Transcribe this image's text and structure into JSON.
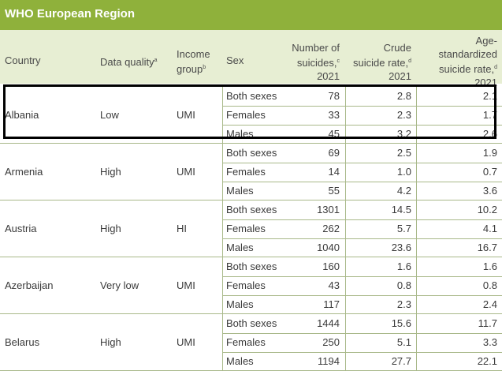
{
  "region_title": "WHO European Region",
  "headers": {
    "country": "Country",
    "quality": "Data quality",
    "quality_sup": "a",
    "income_1": "Income",
    "income_2": "group",
    "income_sup": "b",
    "sex": "Sex",
    "num_1": "Number of",
    "num_2": "suicides,",
    "num_sup": "c",
    "num_3": "2021",
    "crude_1": "Crude",
    "crude_2": "suicide rate,",
    "crude_sup": "d",
    "crude_3": "2021",
    "age_1": "Age-",
    "age_2": "standardized",
    "age_3": "suicide rate,",
    "age_sup": "d",
    "age_4": "2021"
  },
  "countries": [
    {
      "country": "Albania",
      "quality": "Low",
      "income": "UMI",
      "rows": [
        {
          "sex": "Both sexes",
          "number": "78",
          "crude": "2.8",
          "age": "2.1"
        },
        {
          "sex": "Females",
          "number": "33",
          "crude": "2.3",
          "age": "1.7"
        },
        {
          "sex": "Males",
          "number": "45",
          "crude": "3.2",
          "age": "2.6"
        }
      ]
    },
    {
      "country": "Armenia",
      "quality": "High",
      "income": "UMI",
      "rows": [
        {
          "sex": "Both sexes",
          "number": "69",
          "crude": "2.5",
          "age": "1.9"
        },
        {
          "sex": "Females",
          "number": "14",
          "crude": "1.0",
          "age": "0.7"
        },
        {
          "sex": "Males",
          "number": "55",
          "crude": "4.2",
          "age": "3.6"
        }
      ]
    },
    {
      "country": "Austria",
      "quality": "High",
      "income": "HI",
      "rows": [
        {
          "sex": "Both sexes",
          "number": "1301",
          "crude": "14.5",
          "age": "10.2"
        },
        {
          "sex": "Females",
          "number": "262",
          "crude": "5.7",
          "age": "4.1"
        },
        {
          "sex": "Males",
          "number": "1040",
          "crude": "23.6",
          "age": "16.7"
        }
      ]
    },
    {
      "country": "Azerbaijan",
      "quality": "Very low",
      "income": "UMI",
      "rows": [
        {
          "sex": "Both sexes",
          "number": "160",
          "crude": "1.6",
          "age": "1.6"
        },
        {
          "sex": "Females",
          "number": "43",
          "crude": "0.8",
          "age": "0.8"
        },
        {
          "sex": "Males",
          "number": "117",
          "crude": "2.3",
          "age": "2.4"
        }
      ]
    },
    {
      "country": "Belarus",
      "quality": "High",
      "income": "UMI",
      "rows": [
        {
          "sex": "Both sexes",
          "number": "1444",
          "crude": "15.6",
          "age": "11.7"
        },
        {
          "sex": "Females",
          "number": "250",
          "crude": "5.1",
          "age": "3.3"
        },
        {
          "sex": "Males",
          "number": "1194",
          "crude": "27.7",
          "age": "22.1"
        }
      ]
    }
  ]
}
